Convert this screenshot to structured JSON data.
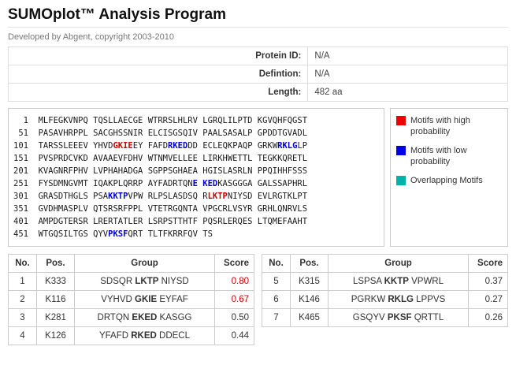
{
  "header": {
    "title": "SUMOplot™ Analysis Program",
    "subtitle": "Developed by Abgent, copyright 2003-2010"
  },
  "info": {
    "rows": [
      {
        "label": "Protein ID:",
        "value": "N/A"
      },
      {
        "label": "Defintion:",
        "value": "N/A"
      },
      {
        "label": "Length:",
        "value": "482 aa"
      }
    ]
  },
  "colors": {
    "motif_high": "#cc0000",
    "motif_low": "#0000cc",
    "legend_high": "#ee0000",
    "legend_low": "#0000e6",
    "legend_overlap": "#00b2a9",
    "score_high": "#cc0000"
  },
  "sequence": {
    "lines": [
      {
        "num": "1",
        "groups": [
          "MLFEGKVNPQ",
          "TQSLLAECGE",
          "WTRRSLHLRV",
          "LGRQLILPTD",
          "KGVQHFQGST"
        ]
      },
      {
        "num": "51",
        "groups": [
          "PASAVHRPPL",
          "SACGHSSNIR",
          "ELCISGSQIV",
          "PAALSASALP",
          "GPDDTGVADL"
        ]
      },
      {
        "num": "101",
        "groups": [
          "TARSSLEEEV",
          [
            [
              "YHVD",
              ""
            ],
            [
              "GKIE",
              "hi"
            ],
            [
              "EY",
              ""
            ]
          ],
          [
            [
              "FAFD",
              ""
            ],
            [
              "RKED",
              "lo"
            ],
            [
              "DD",
              ""
            ]
          ],
          "ECLEQKPAQP",
          [
            [
              "GRKW",
              ""
            ],
            [
              "RKLG",
              "lo"
            ],
            [
              "LP",
              ""
            ]
          ]
        ]
      },
      {
        "num": "151",
        "groups": [
          "PVSPRDCVKD",
          "AVAAEVFDHV",
          "WTNMVELLEE",
          "LIRKHWETTL",
          "TEGKKQRETL"
        ]
      },
      {
        "num": "201",
        "groups": [
          "KVAGNRFPHV",
          "LVPHAHADGA",
          "SGPPSGHAEA",
          "HGISLASRLN",
          "PPQIHHFSSS"
        ]
      },
      {
        "num": "251",
        "groups": [
          "FYSDMNGVMT",
          "IQAKPLQRRP",
          [
            [
              "AYFADRTQN",
              ""
            ],
            [
              "E",
              "lo"
            ]
          ],
          [
            [
              "KED",
              "lo"
            ],
            [
              "KASGGGA",
              ""
            ]
          ],
          "GALSSAPHRL"
        ]
      },
      {
        "num": "301",
        "groups": [
          "GRASDTHGLS",
          [
            [
              "PSA",
              ""
            ],
            [
              "KKTP",
              "lo"
            ],
            [
              "VPW",
              ""
            ]
          ],
          "RLPSLASDSQ",
          [
            [
              "R",
              ""
            ],
            [
              "LKTP",
              "hi"
            ],
            [
              "NIYSD",
              ""
            ]
          ],
          "EVLRGTKLPT"
        ]
      },
      {
        "num": "351",
        "groups": [
          "GVDHMASPLV",
          "QTSRSRFPPL",
          "VTETRGQNTA",
          "VPGCRLVSYR",
          "GRHLQNRVLS"
        ]
      },
      {
        "num": "401",
        "groups": [
          "AMPDGTERSR",
          "LRERTATLER",
          "LSRPSTTHTF",
          "PQSRLERQES",
          "LTQMEFAAHT"
        ]
      },
      {
        "num": "451",
        "groups": [
          "WTGQSILTGS",
          [
            [
              "QYV",
              ""
            ],
            [
              "PKSF",
              "lo"
            ],
            [
              "QRT",
              ""
            ]
          ],
          "TLTFKRRFQV",
          "TS"
        ]
      }
    ]
  },
  "legend": {
    "items": [
      {
        "key": "high",
        "color": "#ee0000",
        "label": "Motifs with high probability"
      },
      {
        "key": "low",
        "color": "#0000e6",
        "label": "Motifs with low probability"
      },
      {
        "key": "overlap",
        "color": "#00b2a9",
        "label": "Overlapping Motifs"
      }
    ]
  },
  "tables": [
    {
      "headers": {
        "no": "No.",
        "pos": "Pos.",
        "group": "Group",
        "score": "Score"
      },
      "rows": [
        {
          "no": "1",
          "pos": "K333",
          "pre": "SDSQR ",
          "motif": "LKTP",
          "post": " NIYSD",
          "score": "0.80",
          "high": true
        },
        {
          "no": "2",
          "pos": "K116",
          "pre": "VYHVD ",
          "motif": "GKIE",
          "post": " EYFAF",
          "score": "0.67",
          "high": true
        },
        {
          "no": "3",
          "pos": "K281",
          "pre": "DRTQN ",
          "motif": "EKED",
          "post": " KASGG",
          "score": "0.50",
          "high": false
        },
        {
          "no": "4",
          "pos": "K126",
          "pre": "YFAFD ",
          "motif": "RKED",
          "post": " DDECL",
          "score": "0.44",
          "high": false
        }
      ]
    },
    {
      "headers": {
        "no": "No.",
        "pos": "Pos.",
        "group": "Group",
        "score": "Score"
      },
      "rows": [
        {
          "no": "5",
          "pos": "K315",
          "pre": "LSPSA ",
          "motif": "KKTP",
          "post": " VPWRL",
          "score": "0.37",
          "high": false
        },
        {
          "no": "6",
          "pos": "K146",
          "pre": "PGRKW ",
          "motif": "RKLG",
          "post": " LPPVS",
          "score": "0.27",
          "high": false
        },
        {
          "no": "7",
          "pos": "K465",
          "pre": "GSQYV ",
          "motif": "PKSF",
          "post": " QRTTL",
          "score": "0.26",
          "high": false
        }
      ]
    }
  ]
}
